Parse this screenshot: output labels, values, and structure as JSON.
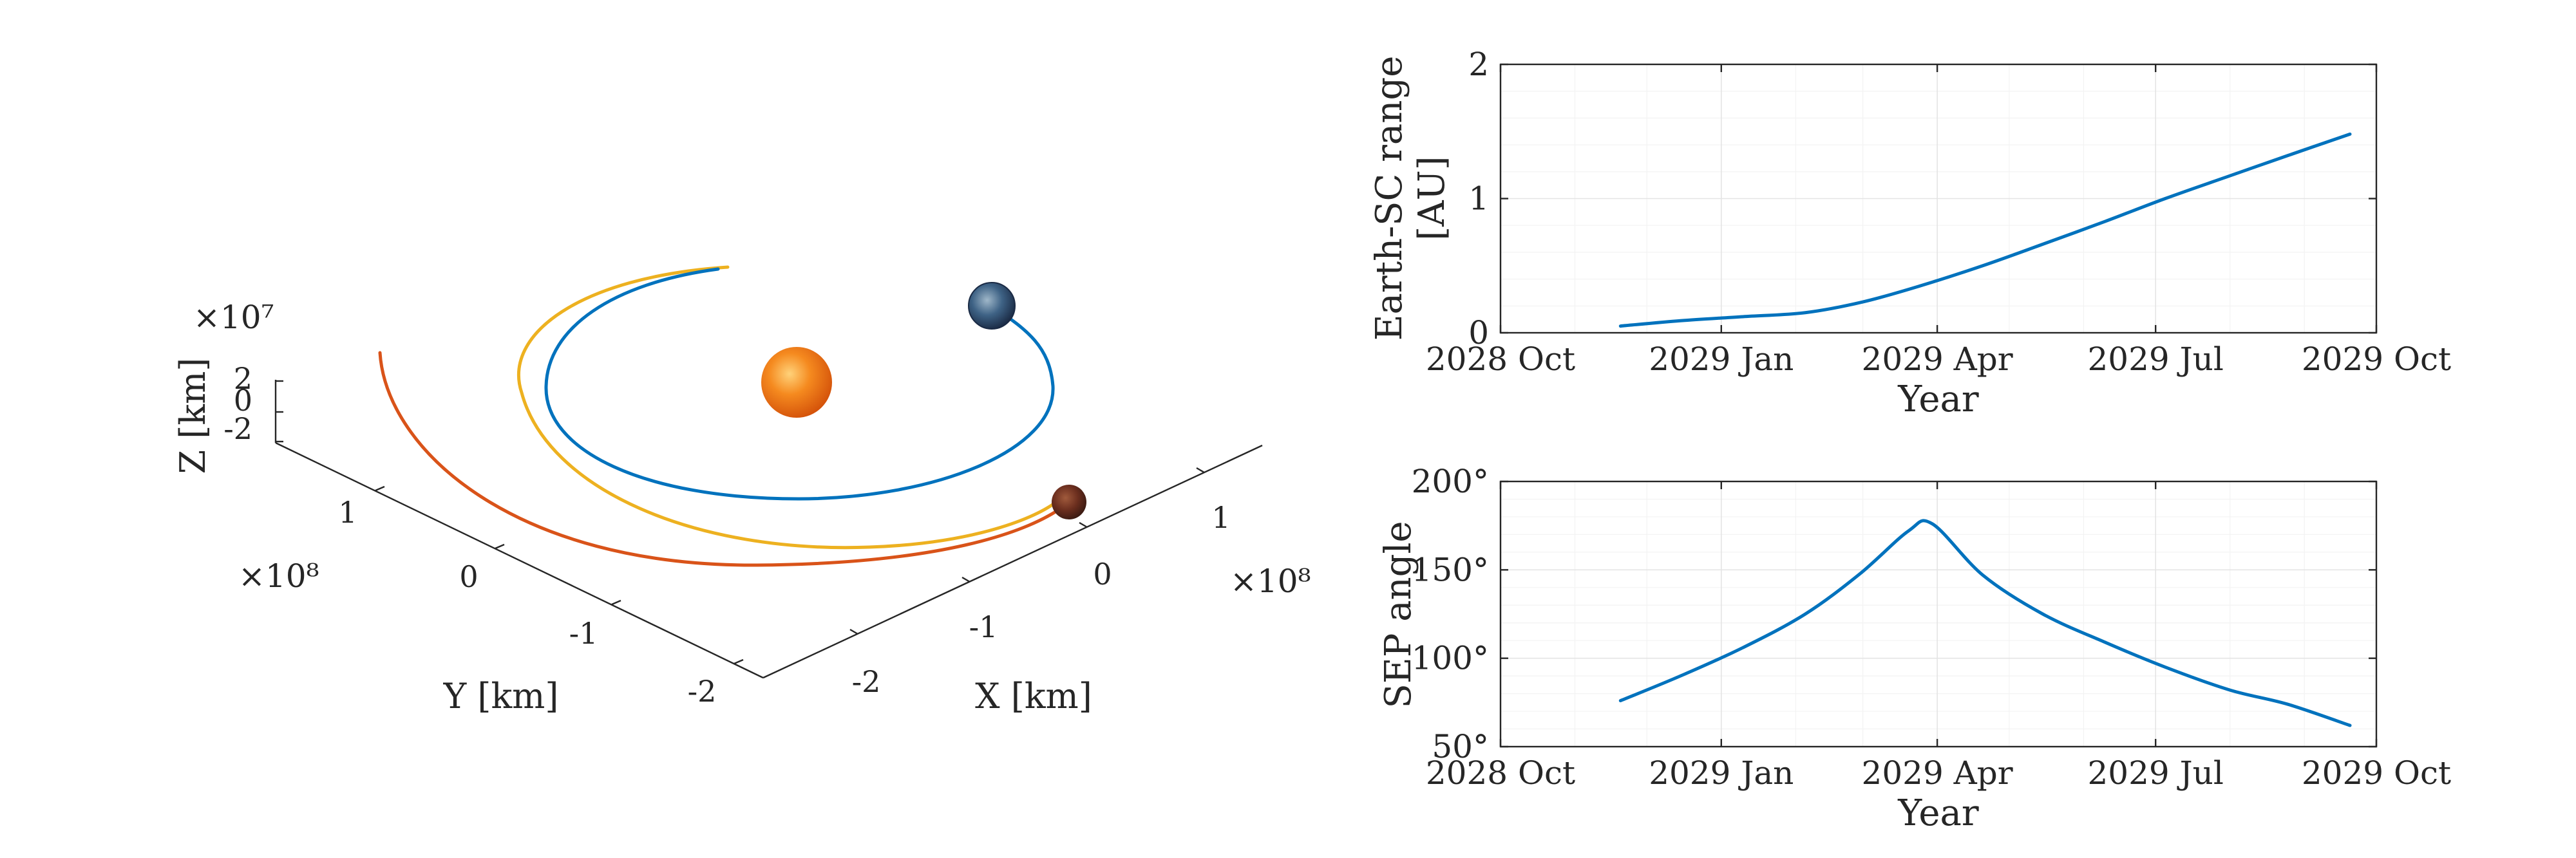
{
  "colors": {
    "earth_orbit": "#0072BD",
    "transfer": "#EDB120",
    "mars_orbit": "#D95319",
    "axes": "#262626",
    "grid": "#e4e4e4",
    "sun": "#f07a10",
    "earth": "#2c4f7a",
    "mars": "#6b2e1e"
  },
  "icons": {
    "sun": "sun-sphere-icon",
    "earth": "earth-globe-icon",
    "mars": "mars-globe-icon"
  },
  "chart_data": [
    {
      "type": "line",
      "title": "",
      "xlabel": "X [km]",
      "ylabel": "Y [km]",
      "zlabel": "Z [km]",
      "projection": "3d",
      "x_ticks": [
        "-2",
        "-1",
        "0",
        "1"
      ],
      "y_ticks": [
        "-2",
        "-1",
        "0",
        "1"
      ],
      "z_ticks": [
        "-2",
        "0",
        "2"
      ],
      "x_exponent": "×10⁸",
      "y_exponent": "×10⁸",
      "z_exponent": "×10⁷",
      "xlim": [
        -2.5,
        1.8
      ],
      "ylim": [
        -2.5,
        1.8
      ],
      "zlim": [
        -2.6,
        2.6
      ],
      "bodies": [
        "Sun",
        "Earth",
        "Mars"
      ],
      "series": [
        {
          "color": "#0072BD",
          "orbit_radius_1e8km": 1.496
        },
        {
          "color": "#EDB120",
          "transfer_perihelion_1e8km": 1.496,
          "transfer_aphelion_1e8km": 2.28
        },
        {
          "color": "#D95319",
          "orbit_radius_1e8km": 2.28
        }
      ]
    },
    {
      "type": "line",
      "title": "",
      "xlabel": "Year",
      "ylabel": "Earth-SC range [AU]",
      "x_ticks": [
        "2028 Oct",
        "2029 Jan",
        "2029 Apr",
        "2029 Jul",
        "2029 Oct"
      ],
      "y_ticks": [
        "0",
        "1",
        "2"
      ],
      "xlim": [
        "2028-10-01",
        "2029-10-01"
      ],
      "ylim": [
        0,
        2
      ],
      "grid": "on",
      "series": [
        {
          "color": "#0072BD",
          "x": [
            "2028-11-20",
            "2028-12-15",
            "2029-01-10",
            "2029-02-05",
            "2029-03-01",
            "2029-03-25",
            "2029-04-20",
            "2029-05-15",
            "2029-06-10",
            "2029-07-05",
            "2029-08-01",
            "2029-08-25",
            "2029-09-20"
          ],
          "y": [
            0.05,
            0.09,
            0.12,
            0.15,
            0.23,
            0.35,
            0.5,
            0.66,
            0.83,
            1.0,
            1.17,
            1.32,
            1.48
          ]
        }
      ]
    },
    {
      "type": "line",
      "title": "",
      "xlabel": "Year",
      "ylabel": "SEP angle",
      "x_ticks": [
        "2028 Oct",
        "2029 Jan",
        "2029 Apr",
        "2029 Jul",
        "2029 Oct"
      ],
      "y_ticks": [
        "50°",
        "100°",
        "150°",
        "200°"
      ],
      "xlim": [
        "2028-10-01",
        "2029-10-01"
      ],
      "ylim": [
        50,
        200
      ],
      "grid": "on",
      "series": [
        {
          "color": "#0072BD",
          "x": [
            "2028-11-20",
            "2028-12-15",
            "2029-01-10",
            "2029-02-05",
            "2029-02-28",
            "2029-03-20",
            "2029-03-30",
            "2029-04-20",
            "2029-05-15",
            "2029-06-10",
            "2029-07-05",
            "2029-08-01",
            "2029-08-25",
            "2029-09-20"
          ],
          "y": [
            76,
            90,
            106,
            125,
            148,
            172,
            176,
            147,
            125,
            109,
            95,
            82,
            74,
            62
          ]
        }
      ]
    }
  ]
}
